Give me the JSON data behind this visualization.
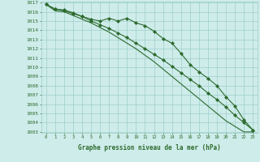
{
  "x": [
    0,
    1,
    2,
    3,
    4,
    5,
    6,
    7,
    8,
    9,
    10,
    11,
    12,
    13,
    14,
    15,
    16,
    17,
    18,
    19,
    20,
    21,
    22,
    23
  ],
  "line1": [
    1016.8,
    1016.3,
    1016.2,
    1015.9,
    1015.5,
    1015.2,
    1015.0,
    1015.3,
    1015.0,
    1015.3,
    1014.8,
    1014.5,
    1013.9,
    1013.1,
    1012.6,
    1011.5,
    1010.3,
    1009.5,
    1008.8,
    1008.0,
    1006.8,
    1005.8,
    1004.3,
    1003.2
  ],
  "line2": [
    1016.8,
    1016.3,
    1016.1,
    1015.8,
    1015.5,
    1015.0,
    1014.6,
    1014.2,
    1013.7,
    1013.2,
    1012.6,
    1012.0,
    1011.4,
    1010.8,
    1010.1,
    1009.4,
    1008.7,
    1008.0,
    1007.2,
    1006.5,
    1005.7,
    1004.8,
    1004.0,
    1003.2
  ],
  "line3": [
    1016.8,
    1016.1,
    1016.0,
    1015.6,
    1015.2,
    1014.8,
    1014.3,
    1013.8,
    1013.2,
    1012.6,
    1012.0,
    1011.3,
    1010.6,
    1009.8,
    1009.0,
    1008.2,
    1007.4,
    1006.6,
    1005.8,
    1005.0,
    1004.2,
    1003.6,
    1003.0,
    1003.0
  ],
  "ylim_min": 1003,
  "ylim_max": 1017,
  "xlim_min": 0,
  "xlim_max": 23,
  "ylabel_ticks": [
    1003,
    1004,
    1005,
    1006,
    1007,
    1008,
    1009,
    1010,
    1011,
    1012,
    1013,
    1014,
    1015,
    1016,
    1017
  ],
  "line_color": "#2d6a2d",
  "bg_color": "#ceecea",
  "grid_color": "#9ececa",
  "xlabel": "Graphe pression niveau de la mer (hPa)",
  "marker": "D",
  "marker_size": 2.0,
  "line_width": 0.8
}
